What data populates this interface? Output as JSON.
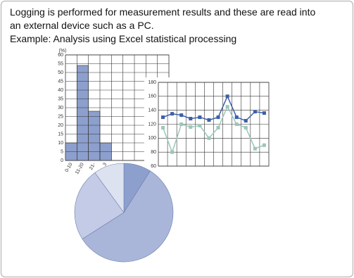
{
  "text": [
    "Logging is performed for measurement results and these are read into",
    "an external device such as a PC.",
    "Example: Analysis using Excel statistical processing"
  ],
  "chart_data": [
    {
      "type": "bar",
      "y_label": "(%)",
      "categories": [
        "0-10",
        "11-20",
        "21-",
        "3",
        null,
        null,
        null,
        null,
        null
      ],
      "values": [
        10,
        54,
        28,
        10,
        0,
        0,
        0,
        0,
        0
      ],
      "color": "#8c9fcd",
      "ylim": [
        0,
        60
      ],
      "yticks": [
        0,
        5,
        10,
        15,
        20,
        25,
        30,
        35,
        40,
        45,
        50,
        55,
        60
      ],
      "grid": true
    },
    {
      "type": "line",
      "series": [
        {
          "color": "#3d5fa8",
          "values": [
            130,
            135,
            133,
            128,
            130,
            126,
            130,
            160,
            130,
            125,
            138,
            136
          ]
        },
        {
          "color": "#9cc7bb",
          "values": [
            115,
            80,
            120,
            116,
            118,
            100,
            115,
            145,
            120,
            115,
            85,
            90
          ]
        }
      ],
      "ylim": [
        60,
        180
      ],
      "yticks": [
        60,
        80,
        100,
        120,
        140,
        160,
        180
      ],
      "grid": true
    },
    {
      "type": "pie",
      "values": [
        9,
        57,
        24,
        10
      ],
      "colors": [
        "#8c9fcd",
        "#a9b6da",
        "#c3cbe6",
        "#dde2f1"
      ]
    }
  ]
}
